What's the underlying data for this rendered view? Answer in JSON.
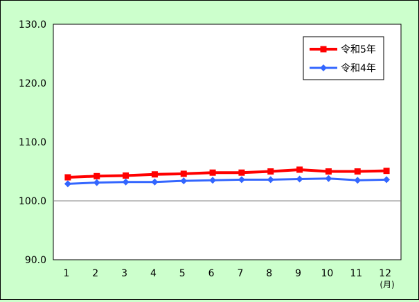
{
  "chart_data": {
    "type": "line",
    "categories": [
      "1",
      "2",
      "3",
      "4",
      "5",
      "6",
      "7",
      "8",
      "9",
      "10",
      "11",
      "12"
    ],
    "x_unit_label": "(月)",
    "ylim": [
      90.0,
      130.0
    ],
    "yticks": [
      "130.0",
      "120.0",
      "110.0",
      "100.0",
      "90.0"
    ],
    "grid": "reference line at 100.0",
    "legend_position": "top-right",
    "series": [
      {
        "name": "令和5年",
        "color": "#ff0000",
        "marker": "square",
        "values": [
          104.0,
          104.2,
          104.3,
          104.5,
          104.6,
          104.8,
          104.8,
          105.0,
          105.3,
          105.0,
          105.0,
          105.1
        ]
      },
      {
        "name": "令和4年",
        "color": "#3366ff",
        "marker": "diamond",
        "values": [
          102.9,
          103.1,
          103.2,
          103.2,
          103.4,
          103.5,
          103.6,
          103.6,
          103.7,
          103.8,
          103.5,
          103.6
        ]
      }
    ]
  }
}
